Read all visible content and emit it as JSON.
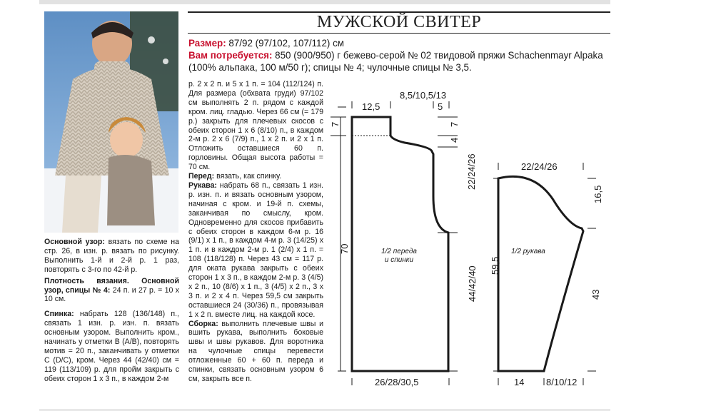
{
  "title": "МУЖСКОЙ СВИТЕР",
  "header": {
    "size_label": "Размер:",
    "size_value": " 87/92 (97/102, 107/112) см",
    "need_label": "Вам потребуется:",
    "need_value": " 850 (900/950) г бежево-серой № 02 твидовой пряжи Schachenmayr Alpaka (100% альпака, 100 м/50 г); спицы № 4; чулочные спицы № 3,5."
  },
  "photo": {
    "icon": "photo-man-child-sweater"
  },
  "left_column": {
    "pattern_label": "Основной узор:",
    "pattern_text": " вязать по схеме на стр. 26, в изн. р. вязать по рисунку. Выполнить 1-й и 2-й р. 1 раз, повторять с 3-го по 42-й р.",
    "gauge_label": "Плотность вязания. Основной узор, спицы № 4:",
    "gauge_text": " 24 п. и 27 р. = 10 х 10 см.",
    "back_label": "Спинка:",
    "back_text": " набрать 128 (136/148) п., связать 1 изн. р. изн. п. вязать основным узором. Выполнить кром., начинать у отметки В (А/В), повторять мотив = 20 п., заканчивать у отметки С (D/C), кром. Через 44 (42/40) см = 119 (113/109) р. для пройм закрыть с обеих сторон 1 х 3 п., в каждом 2-м"
  },
  "middle_column": {
    "back_cont": "р. 2 х 2 п. и 5 х 1 п. = 104 (112/124) п. Для размера (обхвата груди) 97/102 см выполнять 2 п. рядом с каждой кром. лиц. гладью. Через 66 см (= 179 р.) закрыть для плечевых скосов с обеих сторон 1 х 6 (8/10) п., в каждом 2-м р. 2 х 6 (7/9) п., 1 х 2 п. и 2 х 1 п. Отложить оставшиеся 60 п. горловины. Общая высота работы = 70 см.",
    "front_label": "Перед:",
    "front_text": " вязать, как спинку.",
    "sleeve_label": "Рукава:",
    "sleeve_text": " набрать 68 п., связать 1 изн. р. изн. п. и вязать основным узором, начиная с кром. и 19-й п. схемы, заканчивая по смыслу, кром. Одновременно для скосов прибавить с обеих сторон в каждом 6-м р. 16 (9/1) х 1 п., в каждом 4-м р. 3 (14/25) х 1 п. и в каждом 2-м р. 1 (2/4) х 1 п. = 108 (118/128) п. Через 43 см = 117 р. для оката рукава закрыть с обеих сторон 1 х 3 п., в каждом 2-м р. 3 (4/5) х 2 п., 10 (8/6) х 1 п., 3 (4/5) х 2 п., 3 х 3 п. и 2 х 4 п. Через 59,5 см закрыть оставшиеся 24 (30/36) п., провязывая 1 х 2 п. вместе лиц. на каждой косе.",
    "assembly_label": "Сборка:",
    "assembly_text": " выполнить плечевые швы и вшить рукава, выполнить боковые швы и швы рукавов. Для воротника на чулочные спицы перевести отложенные 60 + 60 п. переда и спинки, связать основным узором 6 см, закрыть все п."
  },
  "diagram": {
    "body": {
      "top_width": "8,5/10,5/13",
      "shoulder": "12,5",
      "neck": "5",
      "neck_depth_left": "7",
      "neck_depth_right": "7",
      "shoulder_slope": "4",
      "armhole": "22/24/26",
      "side": "44/42/40",
      "total_height": "70",
      "bottom": "26/28/30,5",
      "label_line1": "1/2 переда",
      "label_line2": "и спинки"
    },
    "sleeve": {
      "top": "22/24/26",
      "cap": "16,5",
      "total": "59,5",
      "lower": "43",
      "bottom_left": "14",
      "bottom_right": "8/10/12",
      "label": "1/2 рукава"
    }
  }
}
